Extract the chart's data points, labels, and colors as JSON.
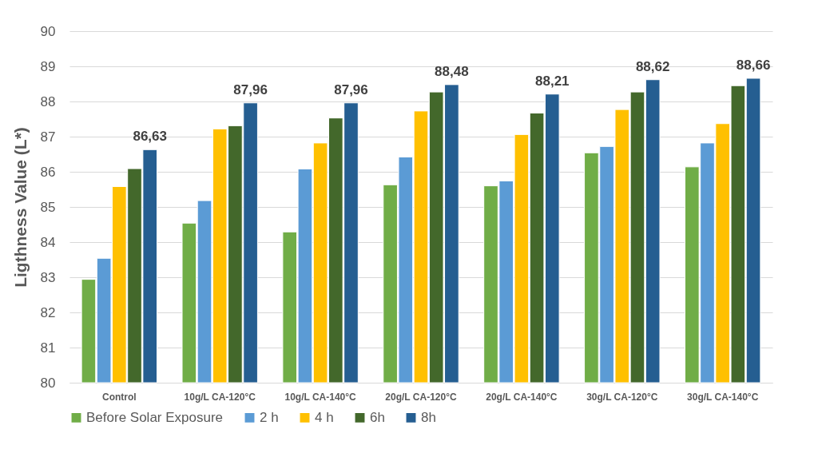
{
  "chart_data": {
    "type": "bar",
    "ylabel": "Ligthness Value (L*)",
    "categories": [
      "Control",
      "10g/L CA-120°C",
      "10g/L CA-140°C",
      "20g/L CA-120°C",
      "20g/L CA-140°C",
      "30g/L CA-120°C",
      "30g/L CA-140°C"
    ],
    "series": [
      {
        "name": "Before Solar Exposure",
        "color": "#70ad47",
        "values": [
          82.94,
          84.54,
          84.29,
          85.63,
          85.6,
          86.54,
          86.14
        ]
      },
      {
        "name": "2 h",
        "color": "#5b9bd5",
        "values": [
          83.54,
          85.18,
          86.08,
          86.42,
          85.74,
          86.72,
          86.82
        ]
      },
      {
        "name": "4 h",
        "color": "#ffc000",
        "values": [
          85.58,
          87.22,
          86.82,
          87.73,
          87.06,
          87.77,
          87.37
        ]
      },
      {
        "name": "6h",
        "color": "#43682b",
        "values": [
          86.09,
          87.31,
          87.53,
          88.27,
          87.67,
          88.27,
          88.45
        ]
      },
      {
        "name": "8h",
        "color": "#255e91",
        "values": [
          86.63,
          87.96,
          87.96,
          88.48,
          88.21,
          88.62,
          88.66
        ],
        "value_labels": [
          "86,63",
          "87,96",
          "87,96",
          "88,48",
          "88,21",
          "88,62",
          "88,66"
        ]
      }
    ],
    "ylim": [
      80,
      90
    ],
    "yticks": [
      80,
      81,
      82,
      83,
      84,
      85,
      86,
      87,
      88,
      89,
      90
    ],
    "grid": "y",
    "legend": "bottom"
  }
}
